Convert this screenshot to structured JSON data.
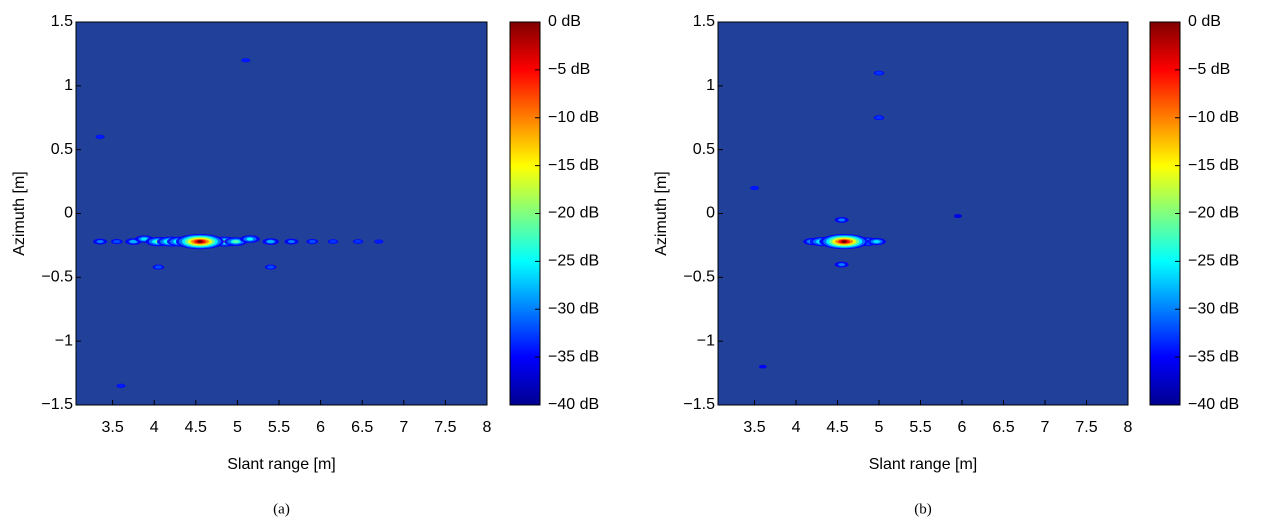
{
  "chart_data": [
    {
      "type": "heatmap",
      "xlabel": "Slant range [m]",
      "ylabel": "Azimuth [m]",
      "caption": "(a)",
      "xlim": [
        3.06,
        8
      ],
      "ylim": [
        -1.5,
        1.5
      ],
      "xticks": [
        3.5,
        4,
        4.5,
        5,
        5.5,
        6,
        6.5,
        7,
        7.5,
        8
      ],
      "yticks": [
        {
          "value": -1.5,
          "label": "−1.5"
        },
        {
          "value": -1,
          "label": "−1"
        },
        {
          "value": -0.5,
          "label": "−0.5"
        },
        0,
        0.5,
        1,
        1.5
      ],
      "colorbar": {
        "lim": [
          -40,
          0
        ],
        "ticks": [
          {
            "value": 0,
            "label": "0 dB"
          },
          {
            "value": -5,
            "label": "−5 dB"
          },
          {
            "value": -10,
            "label": "−10 dB"
          },
          {
            "value": -15,
            "label": "−15 dB"
          },
          {
            "value": -20,
            "label": "−20 dB"
          },
          {
            "value": -25,
            "label": "−25 dB"
          },
          {
            "value": -30,
            "label": "−30 dB"
          },
          {
            "value": -35,
            "label": "−35  dB"
          },
          {
            "value": -40,
            "label": "−40 dB"
          }
        ]
      },
      "spots": [
        {
          "x": 3.35,
          "y": -0.22,
          "db": -30
        },
        {
          "x": 3.55,
          "y": -0.22,
          "db": -32
        },
        {
          "x": 3.75,
          "y": -0.22,
          "db": -28
        },
        {
          "x": 3.88,
          "y": -0.2,
          "db": -26
        },
        {
          "x": 4.05,
          "y": -0.22,
          "db": -20
        },
        {
          "x": 4.2,
          "y": -0.22,
          "db": -18
        },
        {
          "x": 4.32,
          "y": -0.22,
          "db": -18
        },
        {
          "x": 4.85,
          "y": -0.22,
          "db": -18
        },
        {
          "x": 4.98,
          "y": -0.22,
          "db": -22
        },
        {
          "x": 5.15,
          "y": -0.2,
          "db": -25
        },
        {
          "x": 5.4,
          "y": -0.22,
          "db": -28
        },
        {
          "x": 5.65,
          "y": -0.22,
          "db": -30
        },
        {
          "x": 5.9,
          "y": -0.22,
          "db": -32
        },
        {
          "x": 6.15,
          "y": -0.22,
          "db": -33
        },
        {
          "x": 6.45,
          "y": -0.22,
          "db": -33
        },
        {
          "x": 6.7,
          "y": -0.22,
          "db": -34
        },
        {
          "x": 4.05,
          "y": -0.42,
          "db": -32
        },
        {
          "x": 5.4,
          "y": -0.42,
          "db": -32
        },
        {
          "x": 5.1,
          "y": 1.2,
          "db": -34
        },
        {
          "x": 3.35,
          "y": 0.6,
          "db": -34
        },
        {
          "x": 3.6,
          "y": -1.35,
          "db": -34
        },
        {
          "x": 4.55,
          "y": -0.22,
          "db": 0
        }
      ]
    },
    {
      "type": "heatmap",
      "xlabel": "Slant range [m]",
      "ylabel": "Azimuth [m]",
      "caption": "(b)",
      "xlim": [
        3.06,
        8
      ],
      "ylim": [
        -1.5,
        1.5
      ],
      "xticks": [
        3.5,
        4,
        4.5,
        5,
        5.5,
        6,
        6.5,
        7,
        7.5,
        8
      ],
      "yticks": [
        {
          "value": -1.5,
          "label": "−1.5"
        },
        {
          "value": -1,
          "label": "−1"
        },
        {
          "value": -0.5,
          "label": "−0.5"
        },
        0,
        0.5,
        1,
        1.5
      ],
      "colorbar": {
        "lim": [
          -40,
          0
        ],
        "ticks": [
          {
            "value": 0,
            "label": "0 dB"
          },
          {
            "value": -5,
            "label": "−5 dB"
          },
          {
            "value": -10,
            "label": "−10 dB"
          },
          {
            "value": -15,
            "label": "−15 dB"
          },
          {
            "value": -20,
            "label": "−20 dB"
          },
          {
            "value": -25,
            "label": "−25 dB"
          },
          {
            "value": -30,
            "label": "−30 dB"
          },
          {
            "value": -35,
            "label": "−35 dB"
          },
          {
            "value": -40,
            "label": "−40 dB"
          }
        ]
      },
      "spots": [
        {
          "x": 3.5,
          "y": 0.2,
          "db": -34
        },
        {
          "x": 3.6,
          "y": -1.2,
          "db": -35
        },
        {
          "x": 4.2,
          "y": -0.22,
          "db": -26
        },
        {
          "x": 4.32,
          "y": -0.22,
          "db": -20
        },
        {
          "x": 4.42,
          "y": -0.22,
          "db": -22
        },
        {
          "x": 4.72,
          "y": -0.22,
          "db": -20
        },
        {
          "x": 4.85,
          "y": -0.22,
          "db": -22
        },
        {
          "x": 4.97,
          "y": -0.22,
          "db": -26
        },
        {
          "x": 4.55,
          "y": -0.05,
          "db": -30
        },
        {
          "x": 4.55,
          "y": -0.4,
          "db": -30
        },
        {
          "x": 5.0,
          "y": 1.1,
          "db": -33
        },
        {
          "x": 5.0,
          "y": 0.75,
          "db": -33
        },
        {
          "x": 5.95,
          "y": -0.02,
          "db": -36
        },
        {
          "x": 4.58,
          "y": -0.22,
          "db": 0
        }
      ]
    }
  ]
}
